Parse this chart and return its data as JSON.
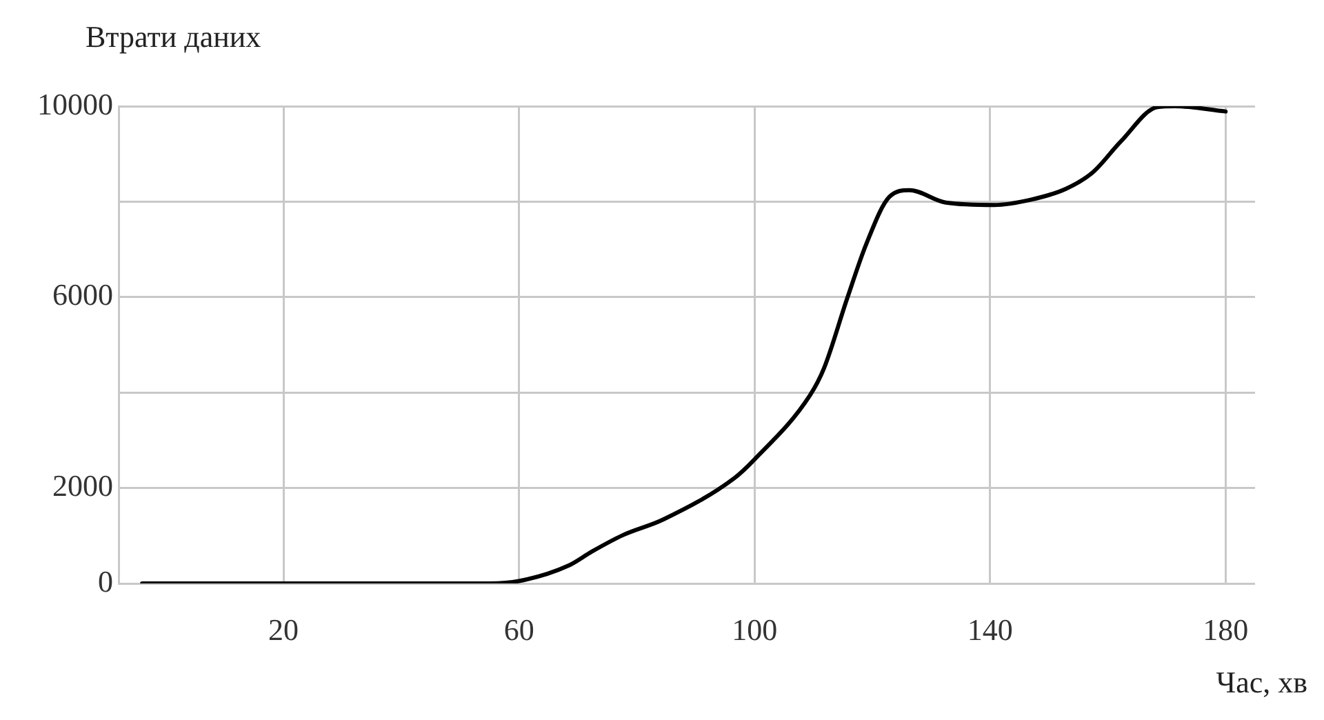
{
  "chart_data": {
    "type": "line",
    "ylabel": "Втрати даних",
    "xlabel": "Час, хв",
    "xlim": [
      -8,
      185
    ],
    "xticks": [
      20,
      60,
      100,
      140,
      180
    ],
    "ylim": [
      0,
      10000
    ],
    "yticks": [
      0,
      2000,
      {
        "value": 4000,
        "label": null
      },
      6000,
      {
        "value": 8000,
        "label": null
      },
      10000
    ],
    "grid": true,
    "legend": false,
    "marker": "none",
    "series": [
      {
        "color": "#000000",
        "x": [
          -4,
          20,
          40,
          55,
          60,
          68.5,
          72.4,
          77.6,
          84.5,
          96.6,
          100,
          109.4,
          111.8,
          115.7,
          119,
          122.9,
          126.3,
          132.5,
          140.7,
          146.9,
          152.9,
          157.5,
          162.2,
          168.4,
          171.4,
          180
        ],
        "values": [
          0,
          0,
          0,
          0,
          50,
          380,
          670,
          1010,
          1340,
          2210,
          2600,
          3940,
          4510,
          5960,
          7120,
          8100,
          8240,
          7980,
          7930,
          8040,
          8270,
          8620,
          9260,
          9980,
          10000,
          9890
        ]
      }
    ]
  }
}
